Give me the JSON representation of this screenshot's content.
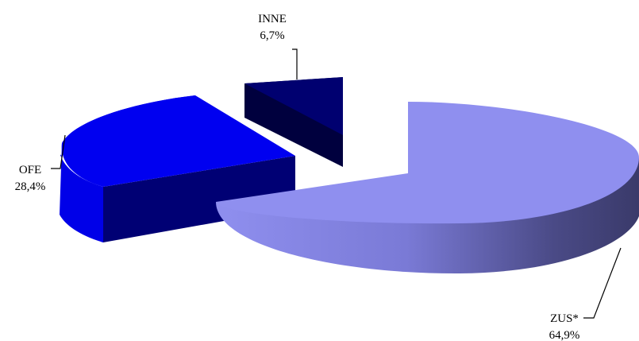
{
  "chart_data": {
    "type": "pie",
    "style": "3d-exploded",
    "title": "",
    "categories": [
      "ZUS*",
      "OFE",
      "INNE"
    ],
    "values": [
      64.9,
      28.4,
      6.7
    ],
    "value_labels": [
      "64,9%",
      "28,4%",
      "6,7%"
    ],
    "unit": "%",
    "colors": {
      "ZUS*": "#8f8fef",
      "OFE": "#0000f0",
      "INNE": "#000070"
    },
    "legend": "none"
  }
}
